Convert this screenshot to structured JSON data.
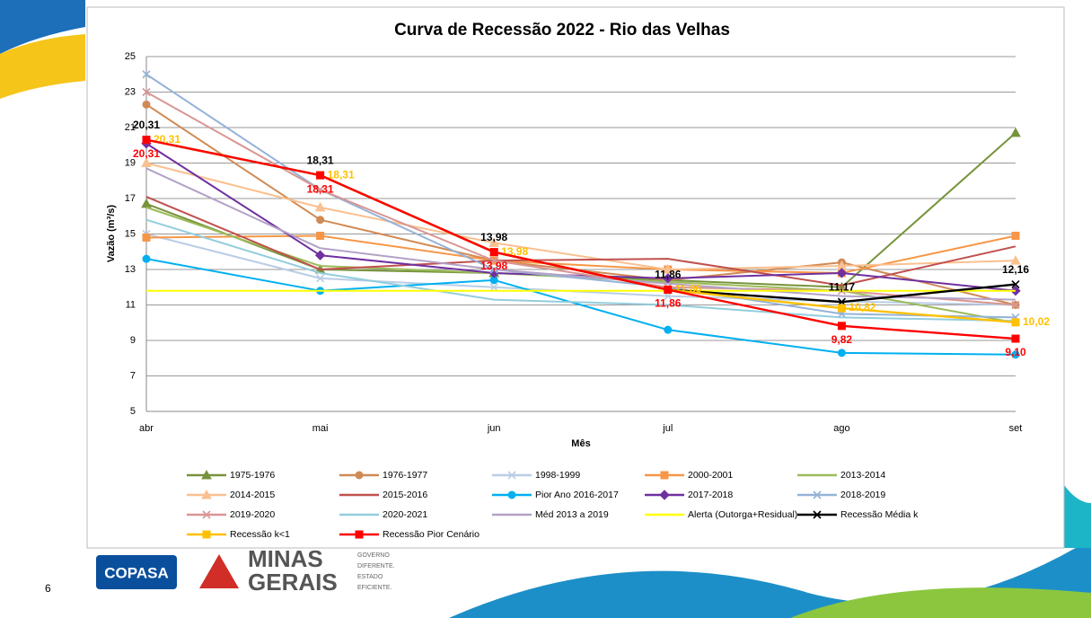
{
  "slide": {
    "page_number": "6",
    "copasa": "COPASA",
    "minas": "MINAS",
    "gerais": "GERAIS",
    "tagline": [
      "GOVERNO",
      "DIFERENTE.",
      "ESTADO",
      "EFICIENTE."
    ]
  },
  "chart_data": {
    "type": "line",
    "title": "Curva de Recessão 2022 - Rio das Velhas",
    "x_label": "Mês",
    "y_label": "Vazão (m³/s)",
    "categories": [
      "abr",
      "mai",
      "jun",
      "jul",
      "ago",
      "set"
    ],
    "ylim": [
      5,
      25
    ],
    "yticks": [
      5,
      7,
      9,
      11,
      13,
      15,
      17,
      19,
      21,
      23,
      25
    ],
    "grid": true,
    "series": [
      {
        "name": "1975-1976",
        "color": "#77933c",
        "marker": "triangle",
        "values": [
          16.7,
          13.0,
          12.8,
          12.4,
          12.0,
          20.7
        ]
      },
      {
        "name": "1976-1977",
        "color": "#d08a55",
        "marker": "circle",
        "values": [
          22.3,
          15.8,
          13.5,
          12.4,
          13.4,
          11.0
        ]
      },
      {
        "name": "1998-1999",
        "color": "#b9cde5",
        "marker": "cross",
        "values": [
          15.0,
          12.5,
          12.0,
          11.5,
          11.2,
          11.0
        ]
      },
      {
        "name": "2000-2001",
        "color": "#f79646",
        "marker": "square",
        "values": [
          14.8,
          14.9,
          13.5,
          13.0,
          12.8,
          14.9
        ]
      },
      {
        "name": "2013-2014",
        "color": "#9bbb59",
        "marker": "none",
        "values": [
          16.5,
          13.2,
          12.8,
          12.3,
          11.8,
          10.0
        ]
      },
      {
        "name": "2014-2015",
        "color": "#fac090",
        "marker": "triangle",
        "values": [
          19.0,
          16.5,
          14.5,
          13.0,
          13.2,
          13.5
        ]
      },
      {
        "name": "2015-2016",
        "color": "#c0504d",
        "marker": "none",
        "values": [
          17.1,
          13.0,
          13.5,
          13.6,
          12.1,
          14.3
        ]
      },
      {
        "name": "Pior Ano 2016-2017",
        "color": "#00b0f0",
        "marker": "circle",
        "values": [
          13.6,
          11.8,
          12.4,
          9.6,
          8.3,
          8.2
        ]
      },
      {
        "name": "2017-2018",
        "color": "#7030a0",
        "marker": "diamond",
        "values": [
          20.1,
          13.8,
          12.8,
          12.5,
          12.8,
          11.8
        ]
      },
      {
        "name": "2018-2019",
        "color": "#95b3d7",
        "marker": "cross",
        "values": [
          24.0,
          17.5,
          13.0,
          12.0,
          10.5,
          10.3
        ]
      },
      {
        "name": "2019-2020",
        "color": "#d99694",
        "marker": "cross",
        "values": [
          23.0,
          17.5,
          13.5,
          12.0,
          11.8,
          11.0
        ]
      },
      {
        "name": "2020-2021",
        "color": "#93cddd",
        "marker": "none",
        "values": [
          15.8,
          12.8,
          11.3,
          11.0,
          10.3,
          10.1
        ]
      },
      {
        "name": "Méd 2013 a 2019",
        "color": "#b3a2c7",
        "marker": "none",
        "values": [
          18.7,
          14.2,
          13.0,
          12.2,
          11.5,
          11.3
        ]
      },
      {
        "name": "Alerta (Outorga+Residual)",
        "color": "#ffff00",
        "marker": "none",
        "values": [
          11.8,
          11.8,
          11.8,
          11.8,
          11.8,
          11.8
        ]
      },
      {
        "name": "Recessão Média k",
        "color": "#000000",
        "marker": "cross",
        "values": [
          20.31,
          18.31,
          13.98,
          11.86,
          11.17,
          12.16
        ],
        "value_labels": [
          "20,31",
          "18,31",
          "13,98",
          "11,86",
          "11,17",
          "12,16"
        ]
      },
      {
        "name": "Recessão k<1",
        "color": "#ffc000",
        "marker": "square",
        "values": [
          20.31,
          18.31,
          13.98,
          11.86,
          10.82,
          10.02
        ],
        "value_labels": [
          "20,31",
          "18,31",
          "13,98",
          "11,86",
          "10,82",
          "10,02"
        ]
      },
      {
        "name": "Recessão Pior Cenário",
        "color": "#ff0000",
        "marker": "square",
        "values": [
          20.31,
          18.31,
          13.98,
          11.86,
          9.82,
          9.1
        ],
        "value_labels": [
          "20,31",
          "18,31",
          "13,98",
          "11,86",
          "9,82",
          "9,10"
        ]
      }
    ]
  }
}
